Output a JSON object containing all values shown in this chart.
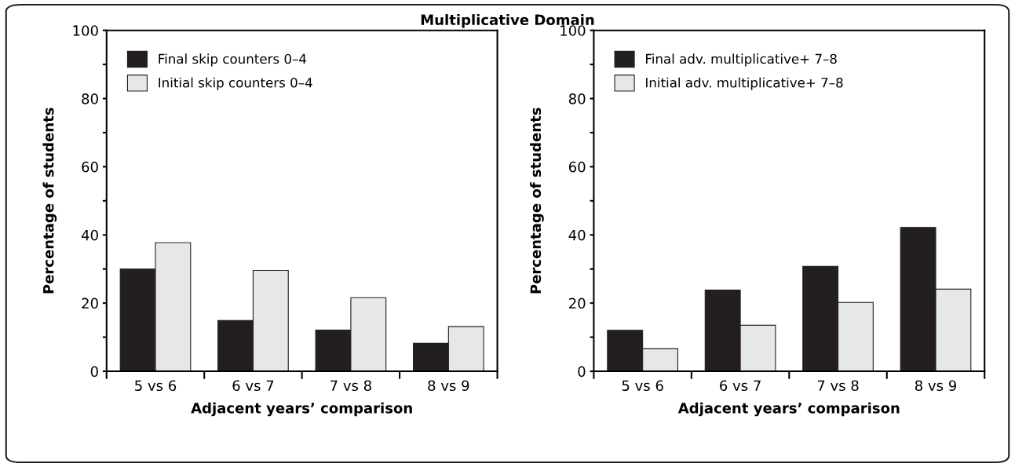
{
  "chart_data": [
    {
      "type": "bar",
      "title": "Multiplicative Domain",
      "xlabel": "Adjacent years’ comparison",
      "ylabel": "Percentage of students",
      "categories": [
        "5 vs 6",
        "6 vs 7",
        "7 vs 8",
        "8 vs 9"
      ],
      "series": [
        {
          "name": "Final skip counters 0–4",
          "color": "#231f20",
          "values": [
            30.0,
            14.9,
            12.1,
            8.2
          ]
        },
        {
          "name": "Initial skip counters 0–4",
          "color": "#e6e7e8",
          "values": [
            37.7,
            29.6,
            21.6,
            13.1
          ]
        }
      ],
      "ylim": [
        0,
        100
      ],
      "yticks": [
        0,
        {
          "value": 10,
          "label": null
        },
        20,
        {
          "value": 30,
          "label": null
        },
        40,
        {
          "value": 50,
          "label": null
        },
        60,
        {
          "value": 70,
          "label": null
        },
        80,
        {
          "value": 90,
          "label": null
        },
        100
      ],
      "grid": false,
      "legend": "top left"
    },
    {
      "type": "bar",
      "xlabel": "Adjacent years’ comparison",
      "ylabel": "Percentage of students",
      "categories": [
        "5 vs 6",
        "6 vs 7",
        "7 vs 8",
        "8 vs 9"
      ],
      "series": [
        {
          "name": "Final adv. multiplicative+ 7–8",
          "color": "#231f20",
          "values": [
            12.0,
            23.8,
            30.8,
            42.2
          ]
        },
        {
          "name": "Initial adv. multiplicative+ 7–8",
          "color": "#e6e7e8",
          "values": [
            6.6,
            13.5,
            20.2,
            24.1
          ]
        }
      ],
      "ylim": [
        0,
        100
      ],
      "yticks": [
        0,
        {
          "value": 10,
          "label": null
        },
        20,
        {
          "value": 30,
          "label": null
        },
        40,
        {
          "value": 50,
          "label": null
        },
        60,
        {
          "value": 70,
          "label": null
        },
        80,
        {
          "value": 90,
          "label": null
        },
        100
      ],
      "grid": false,
      "legend": "top left"
    }
  ]
}
